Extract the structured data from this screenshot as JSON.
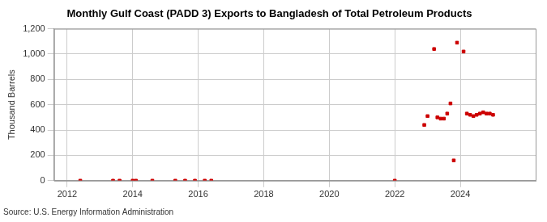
{
  "chart_data": {
    "type": "scatter",
    "title": "Monthly Gulf Coast (PADD 3) Exports to Bangladesh of Total Petroleum Products",
    "y_label": "Thousand Barrels",
    "source": "Source: U.S. Energy Information Administration",
    "x": [
      2012.4,
      2013.4,
      2013.6,
      2014.0,
      2014.1,
      2014.6,
      2015.3,
      2015.6,
      2015.9,
      2016.2,
      2016.4,
      2022.0,
      2022.9,
      2023.0,
      2023.2,
      2023.3,
      2023.4,
      2023.5,
      2023.6,
      2023.7,
      2023.8,
      2023.9,
      2024.1,
      2024.2,
      2024.3,
      2024.4,
      2024.5,
      2024.6,
      2024.7,
      2024.8,
      2024.9,
      2025.0
    ],
    "values": [
      0,
      0,
      0,
      0,
      0,
      0,
      0,
      0,
      0,
      0,
      0,
      0,
      440,
      510,
      1040,
      500,
      490,
      490,
      530,
      610,
      160,
      1090,
      1020,
      530,
      520,
      510,
      520,
      530,
      540,
      530,
      530,
      520
    ],
    "color": "#cc0000",
    "marker": "square",
    "xlim": [
      2011.6,
      2026.3
    ],
    "xticks": [
      2012,
      2014,
      2016,
      2018,
      2020,
      2022,
      2024
    ],
    "ylim": [
      0,
      1200
    ],
    "yticks": [
      0,
      200,
      400,
      600,
      800,
      {
        "value": 1000,
        "label": "1,000"
      },
      {
        "value": 1200,
        "label": "1,200"
      }
    ],
    "grid": true
  }
}
